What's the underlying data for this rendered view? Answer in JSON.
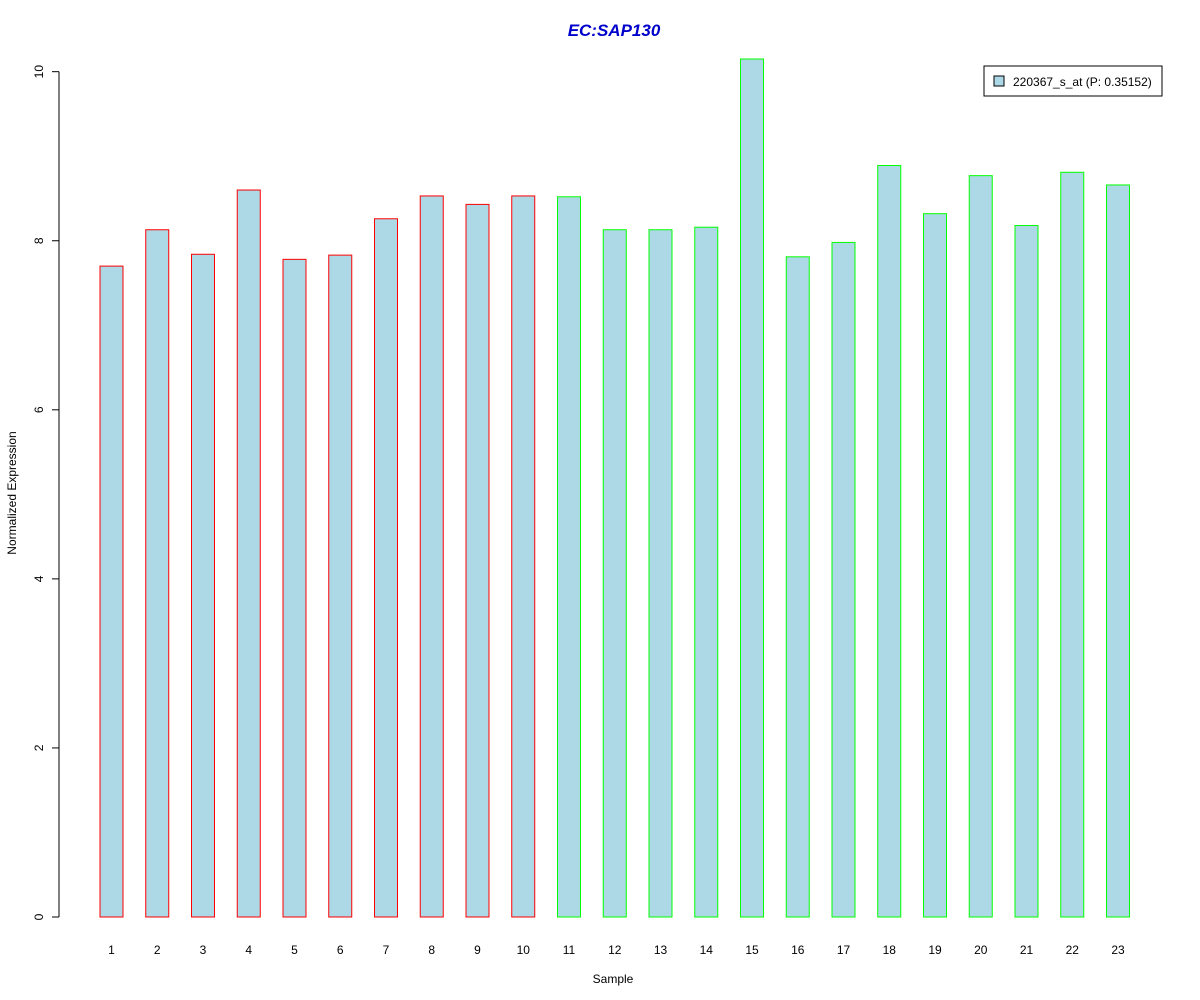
{
  "chart_data": {
    "type": "bar",
    "title": "EC:SAP130",
    "xlabel": "Sample",
    "ylabel": "Normalized Expression",
    "categories": [
      "1",
      "2",
      "3",
      "4",
      "5",
      "6",
      "7",
      "8",
      "9",
      "10",
      "11",
      "12",
      "13",
      "14",
      "15",
      "16",
      "17",
      "18",
      "19",
      "20",
      "21",
      "22",
      "23"
    ],
    "values": [
      7.7,
      8.13,
      7.84,
      8.6,
      7.78,
      7.83,
      8.26,
      8.53,
      8.43,
      8.53,
      8.52,
      8.13,
      8.13,
      8.16,
      10.15,
      7.81,
      7.98,
      8.89,
      8.32,
      8.77,
      8.18,
      8.81,
      8.66
    ],
    "groups": [
      "a",
      "a",
      "a",
      "a",
      "a",
      "a",
      "a",
      "a",
      "a",
      "a",
      "b",
      "b",
      "b",
      "b",
      "b",
      "b",
      "b",
      "b",
      "b",
      "b",
      "b",
      "b",
      "b"
    ],
    "group_border_colors": {
      "a": "#ff0000",
      "b": "#00ff00"
    },
    "bar_fill": "#add8e6",
    "title_color": "#0000cc",
    "ylim": [
      0,
      10.15
    ],
    "yticks": [
      0,
      2,
      4,
      6,
      8,
      10
    ],
    "grid": false,
    "legend": {
      "position": "top-right",
      "entries": [
        {
          "label": "220367_s_at (P: 0.35152)",
          "color": "#add8e6"
        }
      ]
    }
  }
}
